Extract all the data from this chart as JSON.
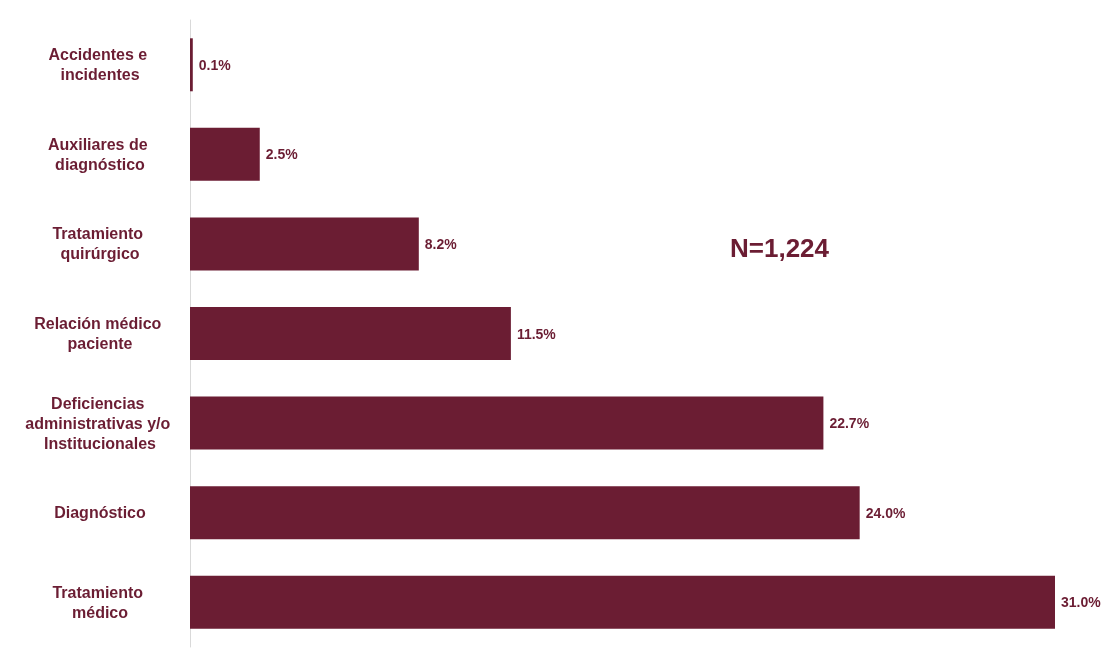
{
  "chart_data": {
    "type": "bar",
    "orientation": "horizontal",
    "categories": [
      "Accidentes e incidentes",
      "Auxiliares de diagnóstico",
      "Tratamiento quirúrgico",
      "Relación médico paciente",
      "Deficiencias administrativas y/o Institucionales",
      "Diagnóstico",
      "Tratamiento médico"
    ],
    "values": [
      0.1,
      2.5,
      8.2,
      11.5,
      22.7,
      24.0,
      31.0
    ],
    "value_labels": [
      "0.1%",
      "2.5%",
      "8.2%",
      "11.5%",
      "22.7%",
      "24.0%",
      "31.0%"
    ],
    "color": "#6b1d33",
    "annotations": [
      "N=1,224"
    ]
  }
}
